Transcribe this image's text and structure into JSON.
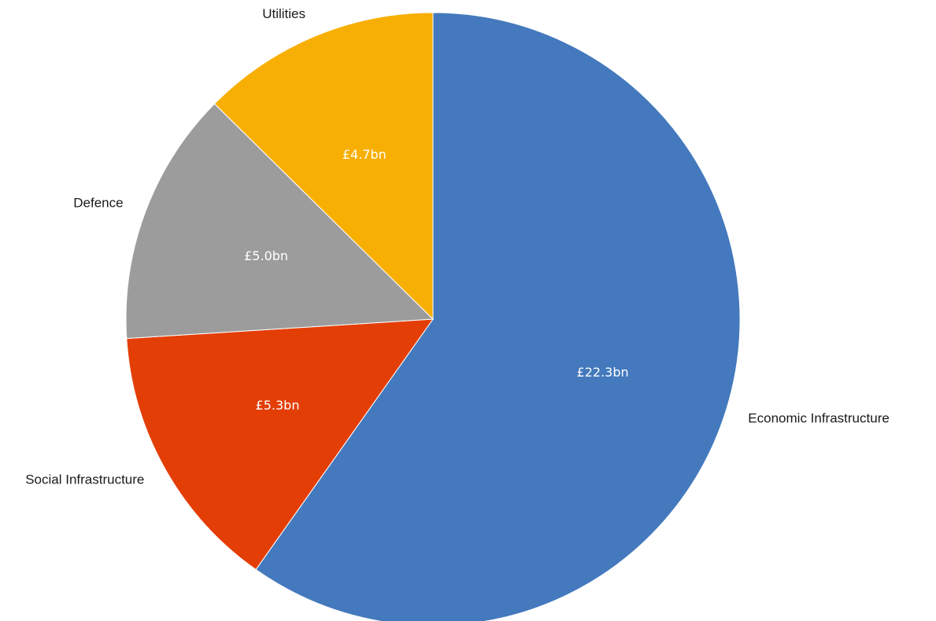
{
  "chart_data": {
    "type": "pie",
    "title": "",
    "start_angle_deg": 0,
    "direction": "clockwise",
    "slices": [
      {
        "label": "Economic Infrastructure",
        "value": 22.3,
        "value_label": "£22.3bn",
        "color": "#4479BD"
      },
      {
        "label": "Social Infrastructure",
        "value": 5.3,
        "value_label": "£5.3bn",
        "color": "#E43E07"
      },
      {
        "label": "Defence",
        "value": 5.0,
        "value_label": "£5.0bn",
        "color": "#9C9C9C"
      },
      {
        "label": "Utilities",
        "value": 4.7,
        "value_label": "£4.7bn",
        "color": "#F8AF04"
      }
    ]
  }
}
